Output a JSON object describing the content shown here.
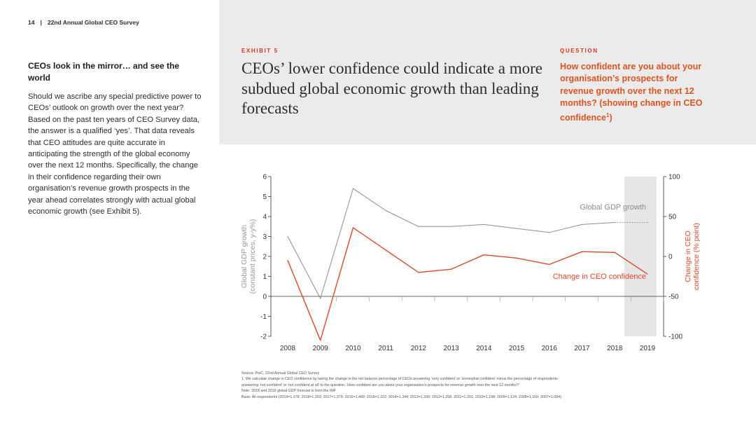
{
  "header": {
    "page_number": "14",
    "separator": "|",
    "publication": "22nd Annual Global CEO Survey"
  },
  "sidebar": {
    "heading": "CEOs look in the mirror… and see the world",
    "body": "Should we ascribe any special predictive power to CEOs’ outlook on growth over the next year? Based on the past ten years of CEO Survey data, the answer is a qualified ‘yes’. That data reveals that CEO attitudes are quite accurate in anticipating the strength of the global economy over the next 12 months. Specifically, the change in their confidence regarding their own organisation’s revenue growth prospects in the year ahead correlates strongly with actual global economic growth (see Exhibit 5)."
  },
  "exhibit": {
    "label": "EXHIBIT 5",
    "title": "CEOs’ lower confidence could indicate a more subdued global economic growth than leading forecasts"
  },
  "question": {
    "label": "QUESTION",
    "text": "How confident are you about your organisation’s prospects for revenue growth over the next 12 months? (showing change in CEO confidence",
    "superscript": "1",
    "closing": ")"
  },
  "colors": {
    "gdp_line": "#8c8c8c",
    "ceo_line": "#e0472b",
    "accent": "#e0301e",
    "forecast_shade": "#e6e6e6",
    "panel": "#ebebeb"
  },
  "chart_data": {
    "type": "line",
    "categories": [
      "2008",
      "2009",
      "2010",
      "2011",
      "2012",
      "2013",
      "2014",
      "2015",
      "2016",
      "2017",
      "2018",
      "2019"
    ],
    "ylabel_left": "Global GDP growth\n(constant prices, y-y%)",
    "ylabel_right": "Change in CEO\nconfidence (% point)",
    "ylim_left": [
      -2,
      6
    ],
    "ylim_right": [
      -100,
      100
    ],
    "yticks_left": [
      "6",
      "5",
      "4",
      "3",
      "2",
      "1",
      "0",
      "-1",
      "-2"
    ],
    "yticks_right": [
      "100",
      "50",
      "0",
      "-50",
      "-100"
    ],
    "forecast_shaded_years": [
      "2019"
    ],
    "grid": false,
    "series": [
      {
        "name": "Global GDP growth",
        "axis": "left",
        "values": [
          3.0,
          -0.1,
          5.4,
          4.3,
          3.5,
          3.5,
          3.6,
          3.4,
          3.2,
          3.6,
          3.7,
          3.7
        ],
        "dotted_last_segment": true
      },
      {
        "name": "Change in CEO confidence",
        "axis": "right",
        "values": [
          -5,
          -105,
          36,
          8,
          -20,
          -16,
          2,
          -2,
          -10,
          6,
          5,
          -22
        ]
      }
    ]
  },
  "footnotes": {
    "source": "Source: PwC, 22nd Annual Global CEO Survey",
    "note1": "1. We calculate change in CEO confidence by taking the change in the net balance percentage of CEOs answering ‘very confident’ or ‘somewhat confident’ minus the percentage of respondents",
    "note1b": "answering ‘not confident’ or ‘not confident at all’ to the question: ‘How confident are you about your organisation’s prospects for revenue growth over the next 12 months?’",
    "note2": "Note: 2018 and 2019 global GDP forecast is from the IMF",
    "base": "Base: All respondents (2019=1,378; 2018=1,293; 2017=1,379; 2016=1,409; 2015=1,322; 2014=1,344; 2013=1,330; 2012=1,258; 2011=1,201; 2010=1,198; 2009=1,124; 2008=1,150; 2007=1,084)"
  }
}
